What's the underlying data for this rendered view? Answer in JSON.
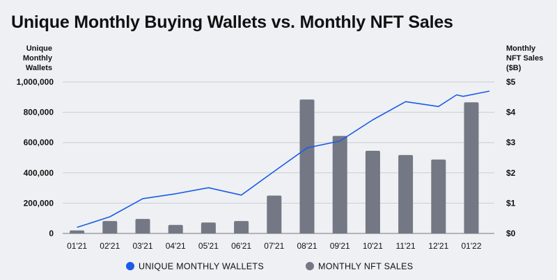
{
  "title": "Unique Monthly Buying Wallets vs. Monthly NFT Sales",
  "colors": {
    "line": "#1a5ce8",
    "bar": "#737884",
    "grid": "#c9ccd2",
    "background": "#eef0f3"
  },
  "chart_data": {
    "type": "bar",
    "title": "Unique Monthly Buying Wallets vs. Monthly NFT Sales",
    "categories": [
      "01'21",
      "02'21",
      "03'21",
      "04'21",
      "05'21",
      "06'21",
      "07'21",
      "08'21",
      "09'21",
      "10'21",
      "11'21",
      "12'21",
      "01'22"
    ],
    "y_left": {
      "label": [
        "Unique",
        "Monthly",
        "Wallets"
      ],
      "range": [
        0,
        1000000
      ],
      "ticks": [
        "0",
        "200,000",
        "400,000",
        "600,000",
        "800,000",
        "1,000,000"
      ],
      "tick_values": [
        0,
        200000,
        400000,
        600000,
        800000,
        1000000
      ]
    },
    "y_right": {
      "label": [
        "Monthly",
        "NFT Sales",
        "($B)"
      ],
      "range": [
        0,
        5
      ],
      "ticks": [
        "$0",
        "$1",
        "$2",
        "$3",
        "$4",
        "$5"
      ],
      "tick_values": [
        0,
        1,
        2,
        3,
        4,
        5
      ]
    },
    "grid": true,
    "series": [
      {
        "name": "MONTHLY NFT SALES",
        "type": "bar",
        "axis": "right",
        "values": [
          0.1,
          0.41,
          0.48,
          0.28,
          0.36,
          0.41,
          1.25,
          4.42,
          3.22,
          2.73,
          2.59,
          2.44,
          4.33
        ]
      },
      {
        "name": "UNIQUE MONTHLY WALLETS",
        "type": "line",
        "axis": "left",
        "points": [
          {
            "x": 0,
            "y": 40000
          },
          {
            "x": 1,
            "y": 110000
          },
          {
            "x": 2,
            "y": 230000
          },
          {
            "x": 3,
            "y": 262000
          },
          {
            "x": 4,
            "y": 302000
          },
          {
            "x": 5,
            "y": 253000
          },
          {
            "x": 6,
            "y": 410000
          },
          {
            "x": 7,
            "y": 565000
          },
          {
            "x": 8,
            "y": 610000
          },
          {
            "x": 9,
            "y": 750000
          },
          {
            "x": 10,
            "y": 870000
          },
          {
            "x": 11,
            "y": 838000
          },
          {
            "x": 11.55,
            "y": 915000
          },
          {
            "x": 11.75,
            "y": 905000
          },
          {
            "x": 12.55,
            "y": 940000
          }
        ]
      }
    ],
    "legend": "bottom"
  }
}
